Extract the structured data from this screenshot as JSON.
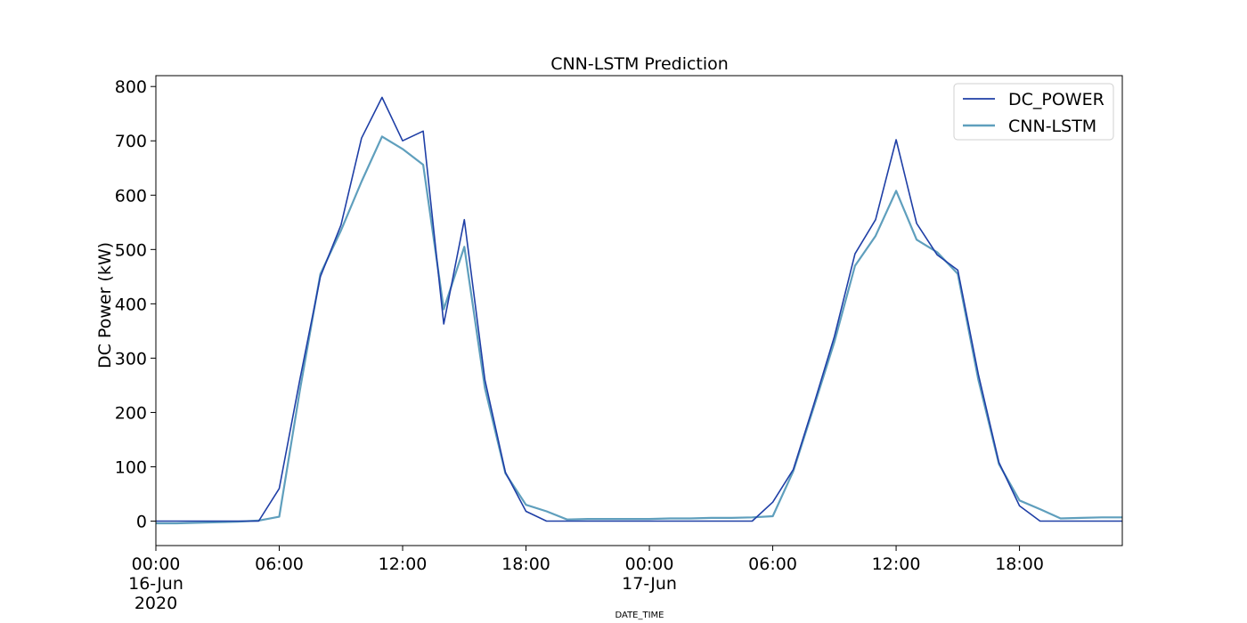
{
  "chart_data": {
    "type": "line",
    "title": "CNN-LSTM Prediction",
    "xlabel": "DATE_TIME",
    "ylabel": "DC Power (kW)",
    "ylim": [
      -45,
      820
    ],
    "xlim": [
      0,
      47
    ],
    "yticks": [
      0,
      100,
      200,
      300,
      400,
      500,
      600,
      700,
      800
    ],
    "xticks": [
      {
        "x": 0,
        "lines": [
          "00:00",
          "16-Jun",
          "2020"
        ]
      },
      {
        "x": 6,
        "lines": [
          "06:00"
        ]
      },
      {
        "x": 12,
        "lines": [
          "12:00"
        ]
      },
      {
        "x": 18,
        "lines": [
          "18:00"
        ]
      },
      {
        "x": 24,
        "lines": [
          "00:00",
          "17-Jun"
        ]
      },
      {
        "x": 30,
        "lines": [
          "06:00"
        ]
      },
      {
        "x": 36,
        "lines": [
          "12:00"
        ]
      },
      {
        "x": 42,
        "lines": [
          "18:00"
        ]
      }
    ],
    "legend": "top-right",
    "grid": false,
    "series": [
      {
        "name": "DC_POWER",
        "color": "#1f3fa6",
        "values": [
          0,
          0,
          0,
          0,
          0,
          0,
          60,
          260,
          450,
          545,
          705,
          780,
          700,
          718,
          363,
          555,
          260,
          90,
          18,
          0,
          0,
          0,
          0,
          0,
          0,
          0,
          0,
          0,
          0,
          0,
          35,
          95,
          215,
          340,
          492,
          555,
          702,
          548,
          490,
          462,
          270,
          108,
          28,
          0,
          0,
          0,
          0,
          0
        ]
      },
      {
        "name": "CNN-LSTM",
        "color": "#5f9fbd",
        "values": [
          -4,
          -4,
          -3,
          -2,
          -1,
          1,
          8,
          240,
          455,
          535,
          625,
          708,
          685,
          656,
          390,
          505,
          245,
          88,
          30,
          18,
          3,
          4,
          4,
          4,
          4,
          5,
          5,
          6,
          6,
          7,
          9,
          92,
          210,
          330,
          470,
          525,
          608,
          518,
          495,
          455,
          260,
          105,
          38,
          22,
          5,
          6,
          7,
          7
        ]
      }
    ]
  }
}
